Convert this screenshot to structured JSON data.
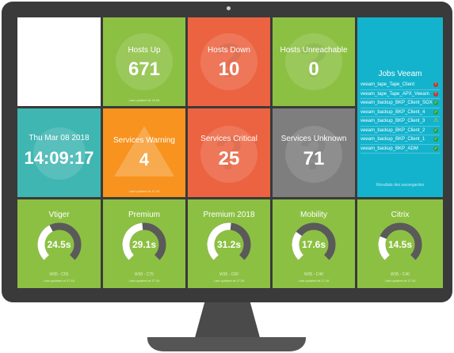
{
  "tiles": {
    "hosts_up": {
      "title": "Hosts Up",
      "value": "671",
      "updated": "Last updated at 16:08"
    },
    "hosts_down": {
      "title": "Hosts Down",
      "value": "10"
    },
    "hosts_unreachable": {
      "title": "Hosts Unreachable",
      "value": "0"
    },
    "clock": {
      "date": "Thu Mar 08 2018",
      "time": "14:09:17"
    },
    "services_warning": {
      "title": "Services Warning",
      "value": "4",
      "updated": "Last updated at 17:16"
    },
    "services_critical": {
      "title": "Services Critical",
      "value": "25"
    },
    "services_unknown": {
      "title": "Services Unknown",
      "value": "71"
    }
  },
  "jobs_veeam": {
    "title": "Jobs Veeam",
    "footer": "Résultats des sauvegardes",
    "items": [
      {
        "name": "veeam_tape_Tape_Client",
        "status": "critical",
        "symbol": "!"
      },
      {
        "name": "veeam_tape_Tape_APX_Veeam",
        "status": "critical",
        "symbol": "!"
      },
      {
        "name": "veeam_backup_BKP_Client_SOX",
        "status": "ok",
        "symbol": "✓"
      },
      {
        "name": "veeam_backup_BKP_Client_4",
        "status": "ok",
        "symbol": "✓"
      },
      {
        "name": "veeam_backup_BKP_Client_3",
        "status": "warning",
        "symbol": "⚠"
      },
      {
        "name": "veeam_backup_BKP_Client_2",
        "status": "ok",
        "symbol": "✓"
      },
      {
        "name": "veeam_backup_BKP_Client_1",
        "status": "ok",
        "symbol": "✓"
      },
      {
        "name": "veeam_backup_BKP_ADM",
        "status": "ok",
        "symbol": "✓"
      }
    ]
  },
  "gauges": [
    {
      "title": "Vtiger",
      "value": "24.5s",
      "fraction": 0.4,
      "range": "W35 - C55",
      "updated": "Last updated at 17:16"
    },
    {
      "title": "Premium",
      "value": "29.1s",
      "fraction": 0.48,
      "range": "W30 - C75",
      "updated": "Last updated at 17:16"
    },
    {
      "title": "Premium 2018",
      "value": "31.2s",
      "fraction": 0.52,
      "range": "W30 - C60",
      "updated": "Last updated at 17:16"
    },
    {
      "title": "Mobility",
      "value": "17.6s",
      "fraction": 0.3,
      "range": "W35 - C40",
      "updated": "Last updated at 17:16"
    },
    {
      "title": "Citrix",
      "value": "14.5s",
      "fraction": 0.25,
      "range": "W35 - C40",
      "updated": "Last updated at 17:16"
    }
  ],
  "colors": {
    "green": "#8cc043",
    "red": "#ec6341",
    "orange": "#f7931e",
    "grey": "#7e7e7e",
    "teal": "#40b6b2",
    "cyan": "#14b3cd",
    "gauge_track": "#5a5a5a",
    "gauge_fill": "#ffffff",
    "ok": "#2e9d3a",
    "warning": "#f5d000",
    "critical": "#c0392b"
  }
}
